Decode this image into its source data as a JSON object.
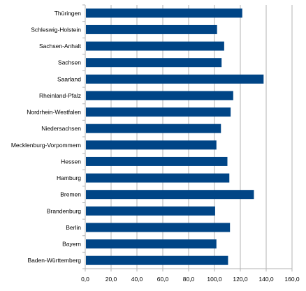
{
  "chart_data": {
    "type": "bar",
    "orientation": "horizontal",
    "categories": [
      "Thüringen",
      "Schleswig-Holstein",
      "Sachsen-Anhalt",
      "Sachsen",
      "Saarland",
      "Rheinland-Pfalz",
      "Nordrhein-Westfalen",
      "Niedersachsen",
      "Mecklenburg-Vorpommern",
      "Hessen",
      "Hamburg",
      "Bremen",
      "Brandenburg",
      "Berlin",
      "Bayern",
      "Baden-Württemberg"
    ],
    "values": [
      121.5,
      102.0,
      107.5,
      105.5,
      138.0,
      114.5,
      112.5,
      105.0,
      101.5,
      110.0,
      111.5,
      130.5,
      100.5,
      112.0,
      101.5,
      110.5
    ],
    "xlim": [
      0,
      160
    ],
    "xticks": [
      0,
      20,
      40,
      60,
      80,
      100,
      120,
      140,
      160
    ],
    "xtick_labels": [
      "0,0",
      "20,0",
      "40,0",
      "60,0",
      "80,0",
      "100,0",
      "120,0",
      "140,0",
      "160,0"
    ],
    "title": "",
    "xlabel": "",
    "ylabel": "",
    "grid": "vertical",
    "legend": "none",
    "bar_color": "#004586",
    "grid_color": "#b3b3b3",
    "axis_color": "#b3b3b3"
  }
}
